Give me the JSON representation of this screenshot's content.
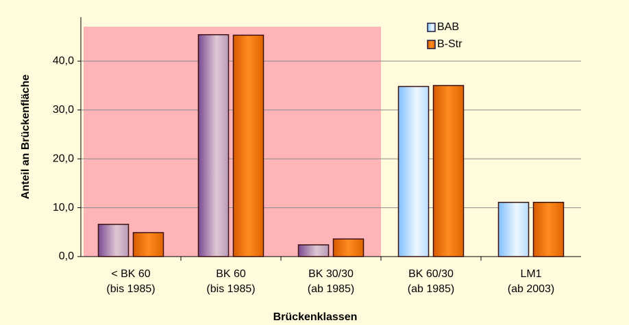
{
  "chart_data": {
    "type": "bar",
    "x_label": "Brückenklassen",
    "y_label": "Anteil an Brückenfläche",
    "categories": [
      [
        "< BK 60",
        "(bis 1985)"
      ],
      [
        "BK 60",
        "(bis 1985)"
      ],
      [
        "BK 30/30",
        "(ab 1985)"
      ],
      [
        "BK 60/30",
        "(ab 1985)"
      ],
      [
        "LM1",
        "(ab 2003)"
      ]
    ],
    "series": [
      {
        "name": "BAB",
        "color": "#a8d4ff",
        "values": [
          6.6,
          45.4,
          2.4,
          34.8,
          11.1
        ]
      },
      {
        "name": "B-Str",
        "color": "#ff7a10",
        "values": [
          4.9,
          45.3,
          3.6,
          35.0,
          11.1
        ]
      }
    ],
    "highlighted_categories": [
      0,
      1,
      2
    ],
    "ylim": [
      0,
      49
    ],
    "yticks": [
      {
        "value": 0,
        "label": "0,0"
      },
      {
        "value": 10,
        "label": "10,0"
      },
      {
        "value": 20,
        "label": "20,0"
      },
      {
        "value": 30,
        "label": "30,0"
      },
      {
        "value": 40,
        "label": "40,0"
      }
    ],
    "grid": true,
    "legend": "top-right"
  }
}
